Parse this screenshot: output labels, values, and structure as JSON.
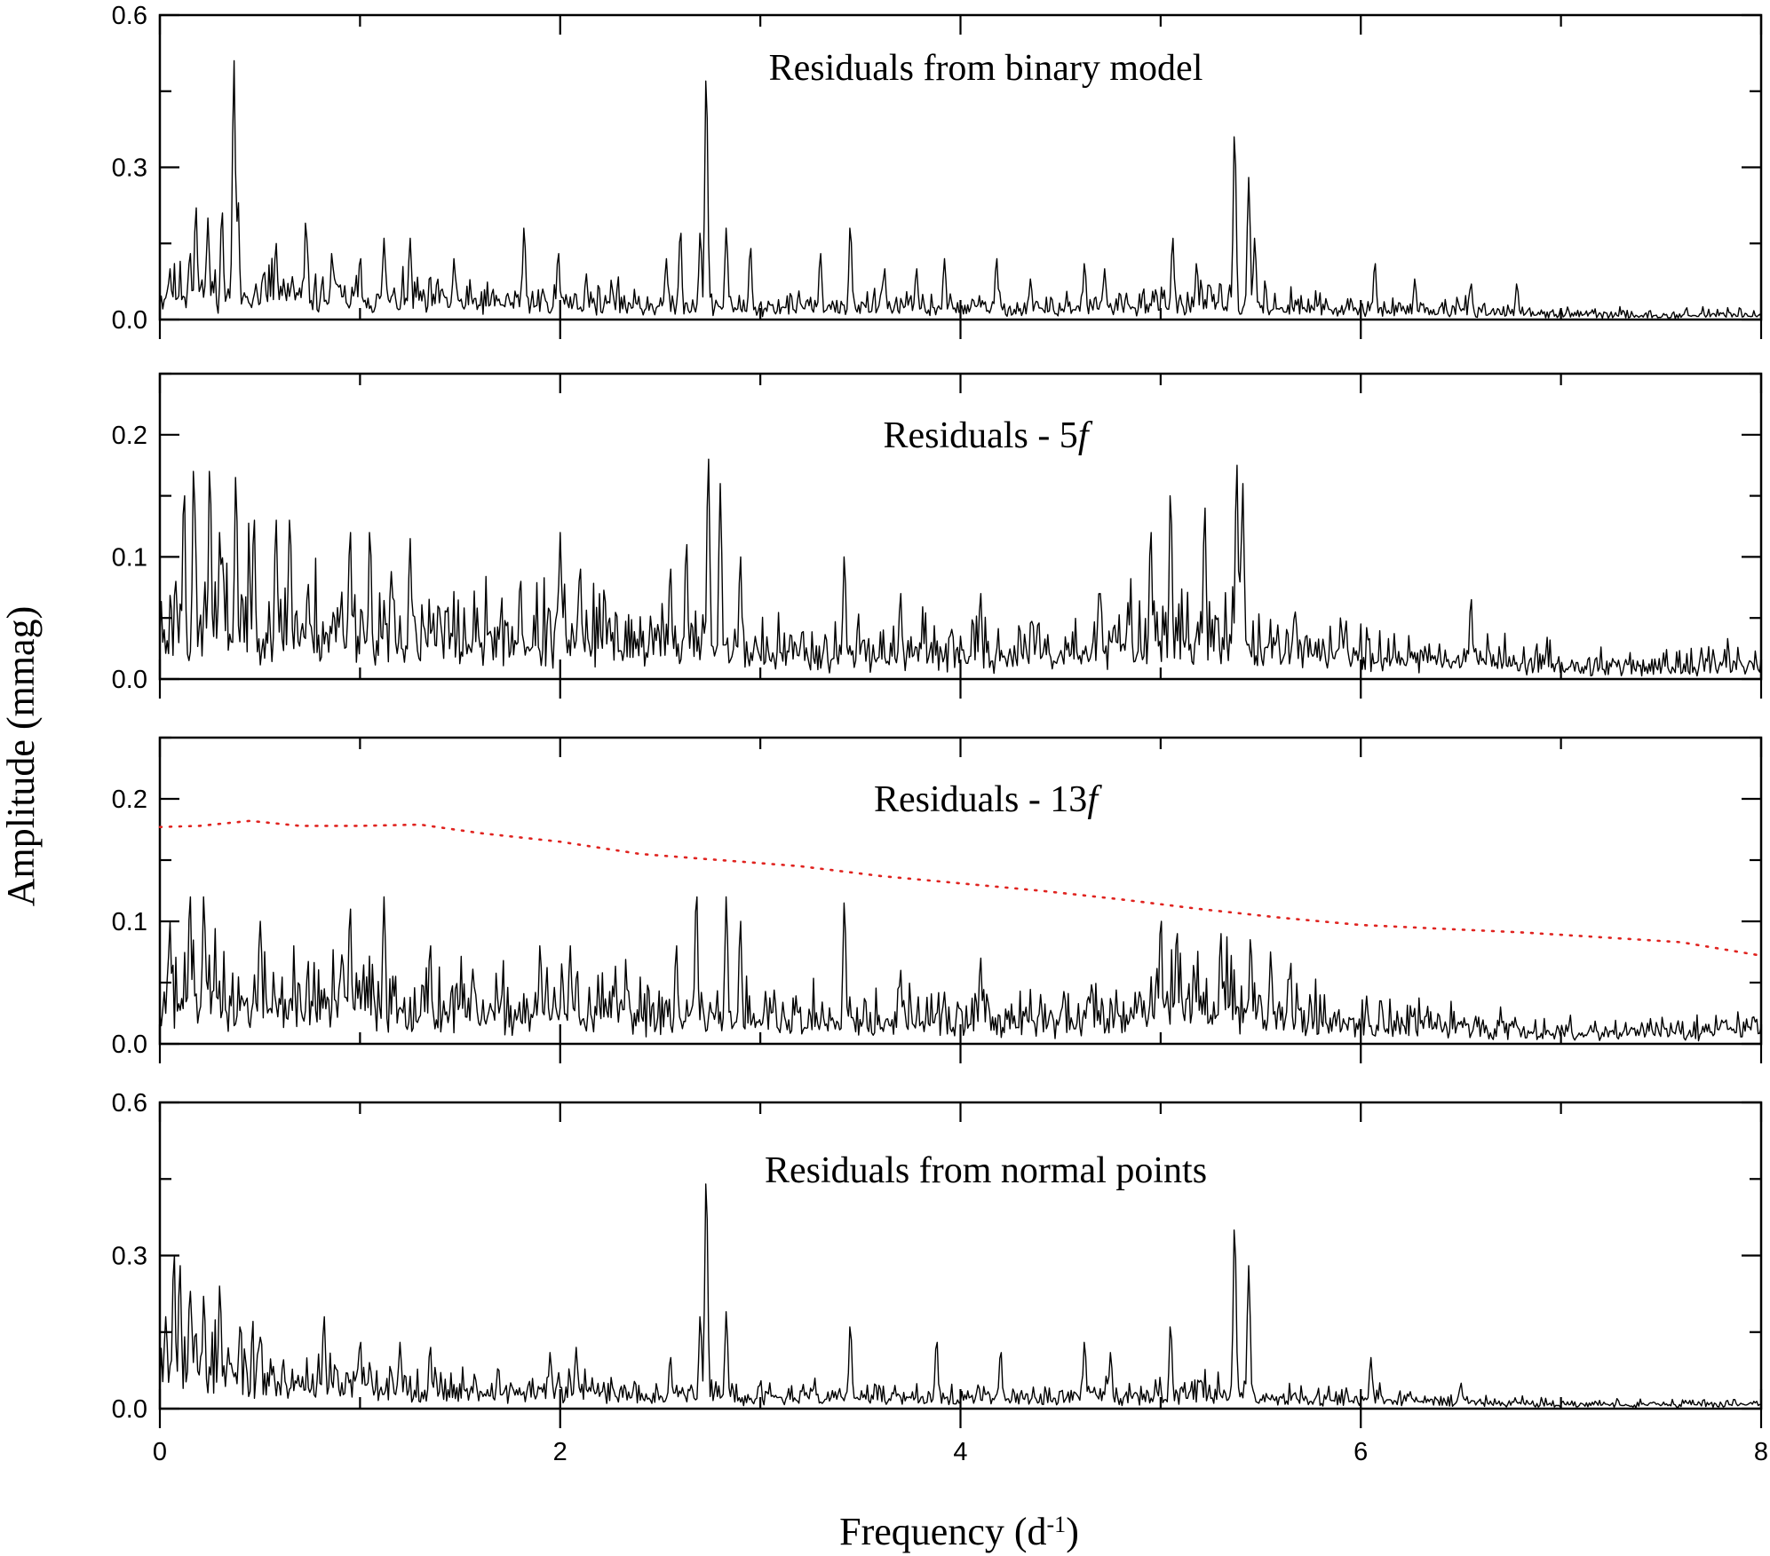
{
  "chart_data": {
    "type": "line",
    "xlabel": "Frequency (d",
    "xlabel_sup": "-1",
    "xlabel_tail": ")",
    "ylabel": "Amplitude (mmag)",
    "xlim": [
      0,
      8
    ],
    "x_ticks": [
      0,
      2,
      4,
      6,
      8
    ],
    "x_tick_labels": [
      "0",
      "2",
      "4",
      "6",
      "8"
    ],
    "grid": false,
    "colors": {
      "series": "#000000",
      "threshold": "#e0231f"
    },
    "panels": [
      {
        "id": "binary",
        "title": "Residuals from binary model",
        "title_italic": "",
        "ylim": [
          0,
          0.6
        ],
        "y_tick_labels": [
          "0.0",
          "0.3",
          "0.6"
        ],
        "y_ticks": [
          0,
          0.3,
          0.6
        ],
        "peaks": [
          [
            0.05,
            0.1
          ],
          [
            0.15,
            0.13
          ],
          [
            0.18,
            0.22
          ],
          [
            0.24,
            0.2
          ],
          [
            0.31,
            0.21
          ],
          [
            0.37,
            0.51
          ],
          [
            0.39,
            0.23
          ],
          [
            0.58,
            0.15
          ],
          [
            0.73,
            0.19
          ],
          [
            0.86,
            0.13
          ],
          [
            1.0,
            0.12
          ],
          [
            1.12,
            0.16
          ],
          [
            1.25,
            0.16
          ],
          [
            1.47,
            0.12
          ],
          [
            1.82,
            0.18
          ],
          [
            1.99,
            0.13
          ],
          [
            2.13,
            0.09
          ],
          [
            2.53,
            0.12
          ],
          [
            2.6,
            0.17
          ],
          [
            2.7,
            0.17
          ],
          [
            2.73,
            0.47
          ],
          [
            2.83,
            0.18
          ],
          [
            2.95,
            0.14
          ],
          [
            3.3,
            0.13
          ],
          [
            3.45,
            0.18
          ],
          [
            3.62,
            0.1
          ],
          [
            3.78,
            0.1
          ],
          [
            3.92,
            0.12
          ],
          [
            4.18,
            0.12
          ],
          [
            4.35,
            0.08
          ],
          [
            4.62,
            0.11
          ],
          [
            4.72,
            0.1
          ],
          [
            5.06,
            0.16
          ],
          [
            5.18,
            0.11
          ],
          [
            5.37,
            0.36
          ],
          [
            5.44,
            0.28
          ],
          [
            5.47,
            0.16
          ],
          [
            6.07,
            0.11
          ],
          [
            6.27,
            0.08
          ],
          [
            6.55,
            0.07
          ],
          [
            6.78,
            0.07
          ]
        ],
        "noise": [
          [
            0,
            0.07
          ],
          [
            0.5,
            0.07
          ],
          [
            1.0,
            0.05
          ],
          [
            1.5,
            0.045
          ],
          [
            2.0,
            0.045
          ],
          [
            2.5,
            0.04
          ],
          [
            2.9,
            0.03
          ],
          [
            3.2,
            0.035
          ],
          [
            3.5,
            0.035
          ],
          [
            4.0,
            0.03
          ],
          [
            4.5,
            0.03
          ],
          [
            4.95,
            0.04
          ],
          [
            5.2,
            0.045
          ],
          [
            5.6,
            0.035
          ],
          [
            6.0,
            0.025
          ],
          [
            6.5,
            0.022
          ],
          [
            7.0,
            0.014
          ],
          [
            7.5,
            0.012
          ],
          [
            8.0,
            0.014
          ]
        ],
        "seed": 11
      },
      {
        "id": "5f",
        "title": "Residuals - 5",
        "title_italic": "f",
        "ylim": [
          0,
          0.25
        ],
        "y_tick_labels": [
          "0.0",
          "0.1",
          "0.2"
        ],
        "y_ticks": [
          0,
          0.1,
          0.2
        ],
        "peaks": [
          [
            0.08,
            0.08
          ],
          [
            0.12,
            0.15
          ],
          [
            0.17,
            0.17
          ],
          [
            0.25,
            0.17
          ],
          [
            0.3,
            0.12
          ],
          [
            0.38,
            0.165
          ],
          [
            0.47,
            0.13
          ],
          [
            0.58,
            0.13
          ],
          [
            0.65,
            0.13
          ],
          [
            0.95,
            0.12
          ],
          [
            1.05,
            0.12
          ],
          [
            1.25,
            0.115
          ],
          [
            1.8,
            0.08
          ],
          [
            2.0,
            0.12
          ],
          [
            2.1,
            0.09
          ],
          [
            2.55,
            0.09
          ],
          [
            2.63,
            0.11
          ],
          [
            2.74,
            0.18
          ],
          [
            2.8,
            0.16
          ],
          [
            2.9,
            0.1
          ],
          [
            3.42,
            0.1
          ],
          [
            3.7,
            0.07
          ],
          [
            4.1,
            0.07
          ],
          [
            4.7,
            0.07
          ],
          [
            4.95,
            0.12
          ],
          [
            5.05,
            0.15
          ],
          [
            5.22,
            0.14
          ],
          [
            5.38,
            0.175
          ],
          [
            5.41,
            0.16
          ],
          [
            5.9,
            0.05
          ],
          [
            6.55,
            0.065
          ]
        ],
        "noise": [
          [
            0,
            0.055
          ],
          [
            0.5,
            0.06
          ],
          [
            1.0,
            0.05
          ],
          [
            1.5,
            0.045
          ],
          [
            2.0,
            0.045
          ],
          [
            2.5,
            0.04
          ],
          [
            2.9,
            0.03
          ],
          [
            3.2,
            0.03
          ],
          [
            3.5,
            0.03
          ],
          [
            4.0,
            0.028
          ],
          [
            4.5,
            0.03
          ],
          [
            4.95,
            0.045
          ],
          [
            5.2,
            0.05
          ],
          [
            5.6,
            0.035
          ],
          [
            6.0,
            0.028
          ],
          [
            6.5,
            0.024
          ],
          [
            7.0,
            0.016
          ],
          [
            7.5,
            0.013
          ],
          [
            8.0,
            0.018
          ]
        ],
        "seed": 23
      },
      {
        "id": "13f",
        "title": "Residuals - 13",
        "title_italic": "f",
        "ylim": [
          0,
          0.25
        ],
        "y_tick_labels": [
          "0.0",
          "0.1",
          "0.2"
        ],
        "y_ticks": [
          0,
          0.1,
          0.2
        ],
        "peaks": [
          [
            0.05,
            0.1
          ],
          [
            0.15,
            0.12
          ],
          [
            0.22,
            0.12
          ],
          [
            0.5,
            0.1
          ],
          [
            0.95,
            0.11
          ],
          [
            1.12,
            0.12
          ],
          [
            1.35,
            0.08
          ],
          [
            1.9,
            0.08
          ],
          [
            2.05,
            0.08
          ],
          [
            2.58,
            0.08
          ],
          [
            2.68,
            0.12
          ],
          [
            2.83,
            0.12
          ],
          [
            2.9,
            0.1
          ],
          [
            3.42,
            0.115
          ],
          [
            3.7,
            0.06
          ],
          [
            4.1,
            0.07
          ],
          [
            5.0,
            0.1
          ],
          [
            5.08,
            0.09
          ],
          [
            5.3,
            0.09
          ],
          [
            5.45,
            0.085
          ],
          [
            5.55,
            0.075
          ],
          [
            6.1,
            0.035
          ]
        ],
        "noise": [
          [
            0,
            0.05
          ],
          [
            0.5,
            0.045
          ],
          [
            1.0,
            0.045
          ],
          [
            1.5,
            0.035
          ],
          [
            2.0,
            0.035
          ],
          [
            2.5,
            0.035
          ],
          [
            2.9,
            0.03
          ],
          [
            3.2,
            0.028
          ],
          [
            3.5,
            0.028
          ],
          [
            4.0,
            0.025
          ],
          [
            4.5,
            0.025
          ],
          [
            4.95,
            0.04
          ],
          [
            5.2,
            0.045
          ],
          [
            5.6,
            0.035
          ],
          [
            6.0,
            0.022
          ],
          [
            6.5,
            0.02
          ],
          [
            7.0,
            0.014
          ],
          [
            7.5,
            0.013
          ],
          [
            8.0,
            0.02
          ]
        ],
        "seed": 37,
        "threshold": {
          "x": [
            0,
            0.2,
            0.45,
            0.7,
            1.0,
            1.3,
            1.6,
            2.0,
            2.4,
            2.8,
            3.2,
            3.6,
            4.0,
            4.4,
            4.8,
            5.2,
            5.6,
            6.0,
            6.4,
            6.8,
            7.2,
            7.6,
            8.0
          ],
          "y": [
            0.177,
            0.178,
            0.182,
            0.178,
            0.178,
            0.179,
            0.172,
            0.165,
            0.155,
            0.15,
            0.145,
            0.137,
            0.131,
            0.125,
            0.118,
            0.11,
            0.103,
            0.097,
            0.094,
            0.091,
            0.087,
            0.083,
            0.072
          ]
        }
      },
      {
        "id": "normal",
        "title": "Residuals from normal points",
        "title_italic": "",
        "ylim": [
          0,
          0.6
        ],
        "y_tick_labels": [
          "0.0",
          "0.3",
          "0.6"
        ],
        "y_ticks": [
          0,
          0.3,
          0.6
        ],
        "peaks": [
          [
            0.03,
            0.18
          ],
          [
            0.07,
            0.3
          ],
          [
            0.1,
            0.28
          ],
          [
            0.15,
            0.23
          ],
          [
            0.22,
            0.22
          ],
          [
            0.3,
            0.24
          ],
          [
            0.4,
            0.16
          ],
          [
            0.5,
            0.14
          ],
          [
            0.82,
            0.18
          ],
          [
            1.0,
            0.13
          ],
          [
            1.2,
            0.13
          ],
          [
            1.35,
            0.12
          ],
          [
            1.95,
            0.11
          ],
          [
            2.08,
            0.12
          ],
          [
            2.55,
            0.1
          ],
          [
            2.7,
            0.18
          ],
          [
            2.73,
            0.44
          ],
          [
            2.83,
            0.19
          ],
          [
            3.45,
            0.16
          ],
          [
            3.88,
            0.13
          ],
          [
            4.2,
            0.11
          ],
          [
            4.62,
            0.13
          ],
          [
            4.75,
            0.11
          ],
          [
            5.05,
            0.16
          ],
          [
            5.37,
            0.35
          ],
          [
            5.44,
            0.28
          ],
          [
            6.05,
            0.1
          ],
          [
            6.5,
            0.05
          ]
        ],
        "noise": [
          [
            0,
            0.12
          ],
          [
            0.3,
            0.1
          ],
          [
            0.6,
            0.07
          ],
          [
            1.0,
            0.06
          ],
          [
            1.5,
            0.05
          ],
          [
            2.0,
            0.045
          ],
          [
            2.5,
            0.04
          ],
          [
            2.9,
            0.03
          ],
          [
            3.2,
            0.03
          ],
          [
            3.5,
            0.03
          ],
          [
            4.0,
            0.028
          ],
          [
            4.5,
            0.028
          ],
          [
            4.95,
            0.04
          ],
          [
            5.2,
            0.045
          ],
          [
            5.6,
            0.032
          ],
          [
            6.0,
            0.025
          ],
          [
            6.5,
            0.02
          ],
          [
            7.0,
            0.013
          ],
          [
            7.5,
            0.011
          ],
          [
            8.0,
            0.014
          ]
        ],
        "seed": 53
      }
    ]
  }
}
